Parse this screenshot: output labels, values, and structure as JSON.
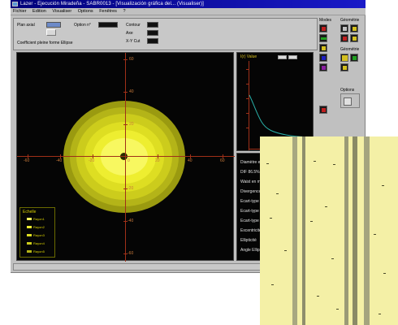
{
  "window": {
    "title": "Lazer - Ejecución Miradeña - SABR0013 - [Visualización gráfica del... (Visualiser)]"
  },
  "menu": {
    "items": [
      "Fichier",
      "Edition",
      "Visualiser",
      "Options",
      "Fenêtres",
      "?"
    ]
  },
  "controls": {
    "label_a": "Plan axial",
    "label_b": "Option n°",
    "label_c": "Contour",
    "label_d": "Axe",
    "label_e": "X-Y Cut",
    "checkbox_label": "Coefficient pleine forme Ellipse"
  },
  "main_plot": {
    "top_label": "X",
    "x_ticks": [
      "-60",
      "-40",
      "-20",
      "0",
      "20",
      "40",
      "60"
    ],
    "y_ticks": [
      "60",
      "40",
      "20",
      "0",
      "-20",
      "-40",
      "-60"
    ],
    "legend_title": "Echelle",
    "legend_items": [
      "Rayon1",
      "Rayon2",
      "Rayon3",
      "Rayon4",
      "Rayon5"
    ],
    "ring_colors": [
      "#9a9a10",
      "#b4b418",
      "#cccc1c",
      "#dede22",
      "#eeee30",
      "#f8f860"
    ]
  },
  "side_plot": {
    "title": "I(r) Value"
  },
  "text_panel": {
    "lines": [
      "Diamètre efficace",
      "DIF 86.5%",
      "Waist en mm",
      "Divergence",
      "Ecart-type",
      "Ecart-type X",
      "Ecart-type Y",
      "Excentricité",
      "Ellipticité",
      "Angle Ellipse"
    ]
  },
  "tools": {
    "header_left": "Modes",
    "header_right": "Géométrie",
    "header_third": "Géométrie",
    "header_fourth": "Options"
  }
}
